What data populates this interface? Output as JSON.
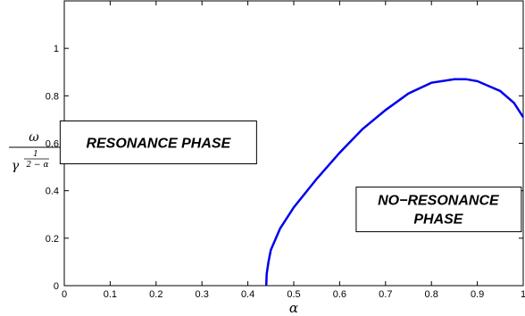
{
  "chart_data": {
    "type": "line",
    "title": "",
    "xlabel": "α",
    "ylabel": {
      "numerator": "ω",
      "base": "γ",
      "exp_numerator": "1",
      "exp_denominator": "2 − α"
    },
    "xlim": [
      0,
      1
    ],
    "ylim": [
      0,
      1.2
    ],
    "x_ticks": [
      "0",
      "0.1",
      "0.2",
      "0.3",
      "0.4",
      "0.5",
      "0.6",
      "0.7",
      "0.8",
      "0.9",
      "1"
    ],
    "y_ticks": [
      "0",
      "0.2",
      "0.4",
      "0.6",
      "0.8",
      "1"
    ],
    "x_tick_values": [
      0,
      0.1,
      0.2,
      0.3,
      0.4,
      0.5,
      0.6,
      0.7,
      0.8,
      0.9,
      1
    ],
    "y_tick_values": [
      0,
      0.2,
      0.4,
      0.6,
      0.8,
      1
    ],
    "grid": false,
    "line_color": "#0000ee",
    "series": [
      {
        "x": [
          0.44,
          0.441,
          0.445,
          0.45,
          0.47,
          0.5,
          0.55,
          0.6,
          0.65,
          0.7,
          0.75,
          0.8,
          0.85,
          0.875,
          0.9,
          0.95,
          0.98,
          1.0
        ],
        "y": [
          0.0,
          0.05,
          0.1,
          0.15,
          0.24,
          0.33,
          0.45,
          0.56,
          0.66,
          0.74,
          0.81,
          0.855,
          0.87,
          0.87,
          0.862,
          0.82,
          0.77,
          0.71
        ]
      }
    ],
    "annotations": [
      {
        "text": "RESONANCE PHASE",
        "x": 0.205,
        "y": 0.6
      },
      {
        "text": "NO−RESONANCE PHASE",
        "x": 0.815,
        "y": 0.31
      }
    ]
  }
}
